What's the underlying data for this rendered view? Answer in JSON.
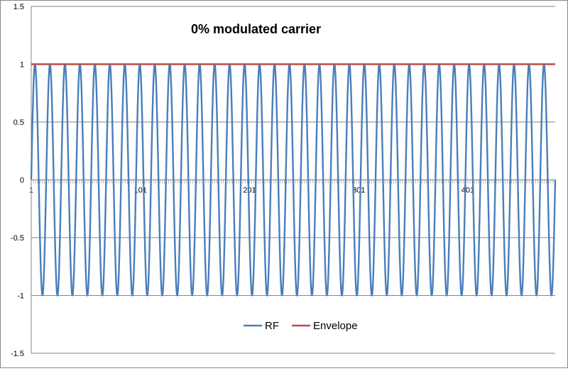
{
  "chart_data": {
    "type": "line",
    "title": "0%  modulated carrier",
    "xlabel": "",
    "ylabel": "",
    "x_range": [
      1,
      481
    ],
    "ylim": [
      -1.5,
      1.5
    ],
    "y_ticks": [
      1.5,
      1,
      0.5,
      0,
      -0.5,
      -1,
      -1.5
    ],
    "y_tick_labels": [
      "1.5",
      "1",
      "0.5",
      "0",
      "-0.5",
      "-1",
      "-1.5"
    ],
    "x_tick_values": [
      1,
      101,
      201,
      301,
      401
    ],
    "x_tick_labels": [
      "1",
      "101",
      "201",
      "301",
      "401"
    ],
    "grid": "horizontal",
    "legend_position": "bottom",
    "series": [
      {
        "name": "RF",
        "color": "#4a7ebb",
        "kind": "sine",
        "amplitude": 1,
        "cycles": 35,
        "x_start": 1,
        "x_end": 481
      },
      {
        "name": "Envelope",
        "color": "#be4b48",
        "kind": "constant",
        "value": 1,
        "x_start": 1,
        "x_end": 481
      }
    ]
  }
}
